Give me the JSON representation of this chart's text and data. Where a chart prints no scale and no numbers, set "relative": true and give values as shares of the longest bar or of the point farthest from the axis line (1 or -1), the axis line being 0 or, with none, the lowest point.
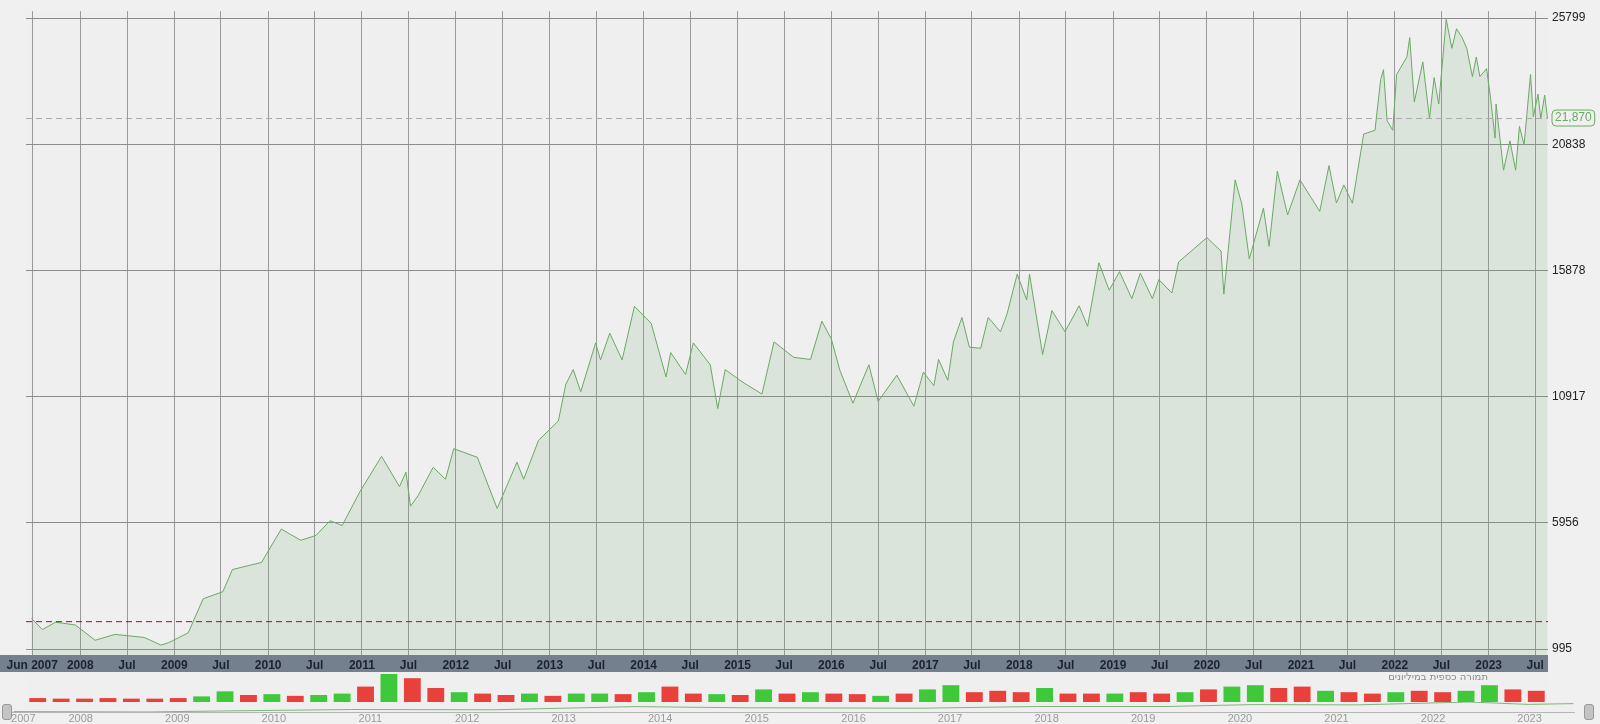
{
  "chart_data": [
    {
      "type": "area",
      "x": [
        "2007-06-25",
        "2007-08-07",
        "2007-09-27",
        "2007-12-13",
        "2008-02-28",
        "2008-05-15",
        "2008-09-06",
        "2008-11-10",
        "2008-12-09",
        "2009-02-24",
        "2009-04-23",
        "2009-07-09",
        "2009-08-15",
        "2009-12-06",
        "2010-02-21",
        "2010-05-08",
        "2010-07-06",
        "2010-08-30",
        "2010-10-16",
        "2010-12-24",
        "2011-03-18",
        "2011-05-27",
        "2011-06-21",
        "2011-07-09",
        "2011-08-07",
        "2011-10-05",
        "2011-11-22",
        "2011-12-24",
        "2012-03-25",
        "2012-06-10",
        "2012-08-26",
        "2012-09-21",
        "2012-11-18",
        "2013-02-03",
        "2013-03-04",
        "2013-04-02",
        "2013-05-01",
        "2013-06-28",
        "2013-07-17",
        "2013-08-22",
        "2013-10-09",
        "2013-11-26",
        "2014-01-30",
        "2014-03-29",
        "2014-04-16",
        "2014-06-13",
        "2014-07-13",
        "2014-09-17",
        "2014-10-16",
        "2014-11-14",
        "2015-01-19",
        "2015-04-06",
        "2015-05-23",
        "2015-08-08",
        "2015-10-12",
        "2015-11-25",
        "2016-01-01",
        "2016-02-03",
        "2016-03-25",
        "2016-05-26",
        "2016-07-01",
        "2016-09-12",
        "2016-11-17",
        "2016-12-24",
        "2017-02-03",
        "2017-02-21",
        "2017-03-29",
        "2017-04-20",
        "2017-05-23",
        "2017-06-21",
        "2017-08-04",
        "2017-09-02",
        "2017-10-20",
        "2017-11-14",
        "2017-12-24",
        "2018-01-30",
        "2018-02-10",
        "2018-04-02",
        "2018-05-08",
        "2018-06-28",
        "2018-08-22",
        "2018-09-24",
        "2018-11-07",
        "2018-12-17",
        "2019-01-26",
        "2019-03-15",
        "2019-04-17",
        "2019-06-03",
        "2019-06-28",
        "2019-08-18",
        "2019-09-13",
        "2019-11-14",
        "2020-01-01",
        "2020-02-25",
        "2020-03-07",
        "2020-04-20",
        "2020-05-16",
        "2020-06-14",
        "2020-08-08",
        "2020-08-30",
        "2020-10-01",
        "2020-11-10",
        "2020-12-28",
        "2021-03-15",
        "2021-04-20",
        "2021-05-19",
        "2021-06-17",
        "2021-07-20",
        "2021-09-02",
        "2021-10-16",
        "2021-11-07",
        "2021-11-18",
        "2021-12-02",
        "2021-12-24",
        "2022-01-08",
        "2022-02-17",
        "2022-02-28",
        "2022-03-18",
        "2022-04-20",
        "2022-05-16",
        "2022-06-03",
        "2022-06-21",
        "2022-07-20",
        "2022-08-11",
        "2022-08-29",
        "2022-09-20",
        "2022-10-08",
        "2022-10-30",
        "2022-11-14",
        "2022-11-28",
        "2022-12-24",
        "2023-01-08",
        "2023-01-26",
        "2023-01-30",
        "2023-02-28",
        "2023-03-25",
        "2023-04-16",
        "2023-05-01",
        "2023-05-19",
        "2023-06-13",
        "2023-06-24",
        "2023-07-12",
        "2023-07-23",
        "2023-08-07",
        "2023-08-18"
      ],
      "series": [
        {
          "color": "#6aa964",
          "values": [
            2200,
            1760,
            2050,
            1940,
            1340,
            1570,
            1450,
            1150,
            1240,
            1630,
            2970,
            3250,
            4120,
            4400,
            5710,
            5270,
            5460,
            6040,
            5850,
            7180,
            8570,
            7380,
            7950,
            6610,
            7020,
            8140,
            7670,
            8870,
            8530,
            6520,
            8340,
            7670,
            9200,
            9960,
            11400,
            11980,
            11110,
            13030,
            12360,
            13410,
            12360,
            14470,
            13800,
            11690,
            12650,
            11790,
            13030,
            12170,
            10450,
            11980,
            11500,
            11020,
            13070,
            12460,
            12380,
            13880,
            13190,
            11960,
            10660,
            12170,
            10730,
            11760,
            10540,
            11880,
            11350,
            12380,
            11560,
            13070,
            14030,
            12860,
            12820,
            14030,
            13470,
            14150,
            15730,
            14720,
            15730,
            12570,
            14300,
            13470,
            14490,
            13680,
            16180,
            15100,
            15830,
            14770,
            15770,
            14770,
            15520,
            14990,
            16210,
            16750,
            17170,
            16640,
            14950,
            19440,
            18480,
            16330,
            18330,
            16830,
            19780,
            18060,
            19440,
            18200,
            20000,
            18530,
            19240,
            18520,
            21240,
            21390,
            23380,
            23770,
            21770,
            21390,
            23580,
            24270,
            25030,
            22500,
            24080,
            21850,
            23460,
            22420,
            25750,
            24610,
            25380,
            25030,
            24610,
            23500,
            24270,
            23500,
            23810,
            22700,
            21080,
            22420,
            19820,
            20970,
            19820,
            21540,
            20820,
            23580,
            21930,
            22810,
            21850,
            22770,
            21870
          ]
        }
      ],
      "xlim": [
        "2007-06-04",
        "2023-08-20"
      ],
      "xticks": [
        {
          "value": "2007-06-28",
          "label": "Jun 2007"
        },
        {
          "value": "2008-01-01",
          "label": "2008"
        },
        {
          "value": "2008-07-01",
          "label": "Jul"
        },
        {
          "value": "2009-01-01",
          "label": "2009"
        },
        {
          "value": "2009-07-01",
          "label": "Jul"
        },
        {
          "value": "2010-01-01",
          "label": "2010"
        },
        {
          "value": "2010-07-01",
          "label": "Jul"
        },
        {
          "value": "2011-01-01",
          "label": "2011"
        },
        {
          "value": "2011-07-01",
          "label": "Jul"
        },
        {
          "value": "2012-01-01",
          "label": "2012"
        },
        {
          "value": "2012-07-01",
          "label": "Jul"
        },
        {
          "value": "2013-01-01",
          "label": "2013"
        },
        {
          "value": "2013-07-01",
          "label": "Jul"
        },
        {
          "value": "2014-01-01",
          "label": "2014"
        },
        {
          "value": "2014-07-01",
          "label": "Jul"
        },
        {
          "value": "2015-01-01",
          "label": "2015"
        },
        {
          "value": "2015-07-01",
          "label": "Jul"
        },
        {
          "value": "2016-01-01",
          "label": "2016"
        },
        {
          "value": "2016-07-01",
          "label": "Jul"
        },
        {
          "value": "2017-01-01",
          "label": "2017"
        },
        {
          "value": "2017-07-01",
          "label": "Jul"
        },
        {
          "value": "2018-01-01",
          "label": "2018"
        },
        {
          "value": "2018-07-01",
          "label": "Jul"
        },
        {
          "value": "2019-01-01",
          "label": "2019"
        },
        {
          "value": "2019-07-01",
          "label": "Jul"
        },
        {
          "value": "2020-01-01",
          "label": "2020"
        },
        {
          "value": "2020-07-01",
          "label": "Jul"
        },
        {
          "value": "2021-01-01",
          "label": "2021"
        },
        {
          "value": "2021-07-01",
          "label": "Jul"
        },
        {
          "value": "2022-01-01",
          "label": "2022"
        },
        {
          "value": "2022-07-01",
          "label": "Jul"
        },
        {
          "value": "2023-01-01",
          "label": "2023"
        },
        {
          "value": "2023-07-01",
          "label": "Jul"
        }
      ],
      "ylim": [
        760,
        26070
      ],
      "yticks": [
        995,
        5956,
        10917,
        15878,
        20838,
        25799
      ],
      "grid": true,
      "ref_lines": [
        {
          "axis": "y",
          "value": 21870,
          "label": "21,870",
          "color": "#aaaaaa",
          "line_style": "dashed"
        },
        {
          "axis": "y",
          "value": 2090,
          "color": "#8b1a1a",
          "line_style": "dashed"
        }
      ]
    },
    {
      "type": "bar",
      "relative": true,
      "tick_labels": false,
      "categories": [
        null,
        null,
        null,
        null,
        null,
        null,
        null,
        null,
        null,
        null,
        null,
        null,
        null,
        null,
        null,
        null,
        null,
        null,
        null,
        null,
        null,
        null,
        null,
        null,
        null,
        null,
        null,
        null,
        null,
        null,
        null,
        null,
        null,
        null,
        null,
        null,
        null,
        null,
        null,
        null,
        null,
        null,
        null,
        null,
        null,
        null,
        null,
        null,
        null,
        null,
        null,
        null,
        null,
        null,
        null,
        null,
        null,
        null,
        null,
        null,
        null,
        null,
        null,
        null,
        null
      ],
      "annotations": [
        "תמורה כספית במיליונים"
      ],
      "values": [
        0.14,
        0.12,
        0.12,
        0.14,
        0.12,
        0.12,
        0.14,
        0.2,
        0.38,
        0.25,
        0.28,
        0.22,
        0.25,
        0.3,
        0.55,
        1,
        0.85,
        0.5,
        0.35,
        0.3,
        0.25,
        0.3,
        0.22,
        0.3,
        0.3,
        0.28,
        0.35,
        0.55,
        0.3,
        0.28,
        0.25,
        0.45,
        0.3,
        0.35,
        0.3,
        0.28,
        0.22,
        0.3,
        0.45,
        0.6,
        0.35,
        0.4,
        0.35,
        0.5,
        0.3,
        0.3,
        0.3,
        0.35,
        0.3,
        0.35,
        0.45,
        0.55,
        0.6,
        0.5,
        0.55,
        0.4,
        0.35,
        0.3,
        0.35,
        0.4,
        0.35,
        0.4,
        0.6,
        0.45,
        0.4
      ],
      "colors": [
        "#e8403a",
        "#e8403a",
        "#e8403a",
        "#e8403a",
        "#e8403a",
        "#e8403a",
        "#e8403a",
        "#3ec83a",
        "#3ec83a",
        "#e8403a",
        "#3ec83a",
        "#e8403a",
        "#3ec83a",
        "#3ec83a",
        "#e8403a",
        "#3ec83a",
        "#e8403a",
        "#e8403a",
        "#3ec83a",
        "#e8403a",
        "#e8403a",
        "#3ec83a",
        "#e8403a",
        "#3ec83a",
        "#3ec83a",
        "#e8403a",
        "#3ec83a",
        "#e8403a",
        "#e8403a",
        "#3ec83a",
        "#e8403a",
        "#3ec83a",
        "#e8403a",
        "#3ec83a",
        "#e8403a",
        "#e8403a",
        "#3ec83a",
        "#e8403a",
        "#3ec83a",
        "#3ec83a",
        "#e8403a",
        "#e8403a",
        "#e8403a",
        "#3ec83a",
        "#e8403a",
        "#e8403a",
        "#3ec83a",
        "#e8403a",
        "#e8403a",
        "#3ec83a",
        "#e8403a",
        "#3ec83a",
        "#3ec83a",
        "#e8403a",
        "#e8403a",
        "#3ec83a",
        "#e8403a",
        "#e8403a",
        "#3ec83a",
        "#e8403a",
        "#e8403a",
        "#3ec83a",
        "#3ec83a",
        "#e8403a",
        "#e8403a"
      ]
    },
    {
      "type": "line",
      "relative": true,
      "x": [
        "2007-06-25",
        "2008-11-10",
        "2009-07-09",
        "2010-12-24",
        "2012-06-10",
        "2013-11-26",
        "2015-01-19",
        "2016-11-17",
        "2018-01-30",
        "2019-06-03",
        "2020-04-20",
        "2021-05-19",
        "2022-07-20",
        "2023-02-28",
        "2023-08-18"
      ],
      "series": [
        {
          "color": "#7fb57a",
          "values": [
            0.04,
            0,
            0.09,
            0.25,
            0.22,
            0.54,
            0.42,
            0.38,
            0.55,
            0.55,
            0.74,
            0.71,
            1,
            0.76,
            0.84
          ]
        }
      ],
      "xlim": [
        "2007-06-04",
        "2023-08-20"
      ],
      "xticks": [
        {
          "value": "2007-08-01",
          "label": "2007"
        },
        {
          "value": "2008-03-05",
          "label": "2008"
        },
        {
          "value": "2009-03-05",
          "label": "2009"
        },
        {
          "value": "2010-03-05",
          "label": "2010"
        },
        {
          "value": "2011-03-05",
          "label": "2011"
        },
        {
          "value": "2012-03-05",
          "label": "2012"
        },
        {
          "value": "2013-03-05",
          "label": "2013"
        },
        {
          "value": "2014-03-05",
          "label": "2014"
        },
        {
          "value": "2015-03-05",
          "label": "2015"
        },
        {
          "value": "2016-03-05",
          "label": "2016"
        },
        {
          "value": "2017-03-05",
          "label": "2017"
        },
        {
          "value": "2018-03-05",
          "label": "2018"
        },
        {
          "value": "2019-03-05",
          "label": "2019"
        },
        {
          "value": "2020-03-05",
          "label": "2020"
        },
        {
          "value": "2021-03-05",
          "label": "2021"
        },
        {
          "value": "2022-03-05",
          "label": "2022"
        },
        {
          "value": "2023-03-05",
          "label": "2023"
        }
      ],
      "tick_labels": "x"
    }
  ]
}
